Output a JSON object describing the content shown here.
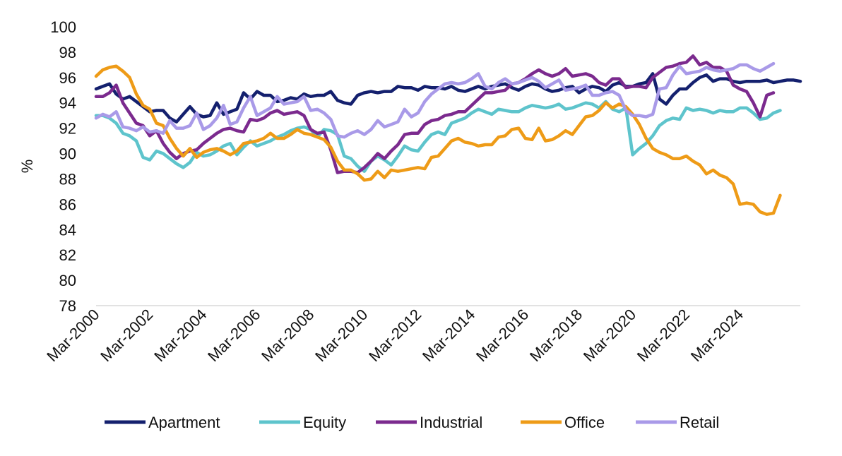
{
  "chart_data": {
    "type": "line",
    "title": "",
    "xlabel": "",
    "ylabel": "%",
    "ylim": [
      78,
      100
    ],
    "yticks": [
      78,
      80,
      82,
      84,
      86,
      88,
      90,
      92,
      94,
      96,
      98,
      100
    ],
    "x_start": "Mar-2000",
    "x_end": "Dec-2025",
    "x_interval": "quarterly",
    "xticks": [
      "Mar-2000",
      "Mar-2002",
      "Mar-2004",
      "Mar-2006",
      "Mar-2008",
      "Mar-2010",
      "Mar-2012",
      "Mar-2014",
      "Mar-2016",
      "Mar-2018",
      "Mar-2020",
      "Mar-2022",
      "Mar-2024"
    ],
    "grid": false,
    "legend": "bottom",
    "series": [
      {
        "name": "Apartment",
        "color": "#14206e",
        "values": [
          95.1,
          95.3,
          95.5,
          94.7,
          94.3,
          94.5,
          94.1,
          93.7,
          93.3,
          93.4,
          93.4,
          92.8,
          92.5,
          93.1,
          93.7,
          93.1,
          92.9,
          93.0,
          94.0,
          93.1,
          93.3,
          93.5,
          94.8,
          94.3,
          94.9,
          94.6,
          94.6,
          94.1,
          94.2,
          94.4,
          94.3,
          94.7,
          94.5,
          94.6,
          94.6,
          94.9,
          94.2,
          94.0,
          93.9,
          94.6,
          94.8,
          94.9,
          94.8,
          94.9,
          94.9,
          95.3,
          95.2,
          95.2,
          95.0,
          95.3,
          95.2,
          95.2,
          95.1,
          95.3,
          95.0,
          94.9,
          95.1,
          95.3,
          95.1,
          95.3,
          95.4,
          95.5,
          95.2,
          95.0,
          95.3,
          95.5,
          95.4,
          95.1,
          94.9,
          95.0,
          95.2,
          95.3,
          94.8,
          95.1,
          95.3,
          95.2,
          94.9,
          95.4,
          95.6,
          95.3,
          95.3,
          95.5,
          95.6,
          96.3,
          94.3,
          93.9,
          94.6,
          95.1,
          95.1,
          95.6,
          96.0,
          96.2,
          95.7,
          95.9,
          95.9,
          95.7,
          95.6,
          95.7,
          95.7,
          95.7,
          95.8,
          95.6,
          95.7,
          95.8,
          95.8,
          95.7
        ]
      },
      {
        "name": "Equity",
        "color": "#5ec4cc",
        "values": [
          93.0,
          93.0,
          92.8,
          92.4,
          91.6,
          91.4,
          91.0,
          89.7,
          89.5,
          90.2,
          90.0,
          89.6,
          89.2,
          88.9,
          89.3,
          90.1,
          89.8,
          89.9,
          90.2,
          90.6,
          90.8,
          89.9,
          90.5,
          91.0,
          90.6,
          90.8,
          91.0,
          91.3,
          91.5,
          91.8,
          92.0,
          92.1,
          91.9,
          91.3,
          91.9,
          91.8,
          91.5,
          89.8,
          89.6,
          89.0,
          88.6,
          89.4,
          89.8,
          89.5,
          89.1,
          89.8,
          90.6,
          90.3,
          90.2,
          90.9,
          91.5,
          91.7,
          91.5,
          92.4,
          92.6,
          92.8,
          93.2,
          93.5,
          93.3,
          93.1,
          93.5,
          93.4,
          93.3,
          93.3,
          93.6,
          93.8,
          93.7,
          93.6,
          93.7,
          93.9,
          93.5,
          93.6,
          93.8,
          94.0,
          93.9,
          93.6,
          94.1,
          93.5,
          93.3,
          93.6,
          89.9,
          90.4,
          90.8,
          91.4,
          92.2,
          92.6,
          92.8,
          92.7,
          93.6,
          93.4,
          93.5,
          93.4,
          93.2,
          93.4,
          93.3,
          93.3,
          93.6,
          93.6,
          93.2,
          92.7,
          92.8,
          93.2,
          93.4
        ]
      },
      {
        "name": "Industrial",
        "color": "#7b2a8e",
        "values": [
          94.5,
          94.5,
          94.8,
          95.4,
          94.0,
          93.2,
          92.4,
          92.2,
          91.4,
          91.8,
          90.8,
          90.1,
          89.6,
          90.0,
          90.2,
          90.3,
          90.8,
          91.2,
          91.6,
          91.9,
          92.0,
          91.8,
          91.7,
          92.7,
          92.6,
          92.8,
          93.2,
          93.4,
          93.1,
          93.2,
          93.3,
          93.0,
          91.9,
          91.6,
          91.7,
          90.3,
          88.5,
          88.6,
          88.6,
          88.5,
          88.9,
          89.4,
          90.0,
          89.6,
          90.2,
          90.7,
          91.5,
          91.6,
          91.6,
          92.3,
          92.6,
          92.7,
          93.0,
          93.1,
          93.3,
          93.3,
          93.8,
          94.3,
          94.8,
          94.8,
          94.9,
          95.0,
          95.5,
          95.6,
          95.9,
          96.3,
          96.6,
          96.3,
          96.1,
          96.3,
          96.7,
          96.1,
          96.2,
          96.3,
          96.1,
          95.6,
          95.4,
          95.9,
          95.9,
          95.2,
          95.3,
          95.3,
          95.2,
          96.0,
          96.4,
          96.8,
          96.9,
          97.1,
          97.2,
          97.7,
          97.0,
          97.2,
          96.8,
          96.8,
          96.5,
          95.4,
          95.1,
          94.9,
          94.0,
          92.9,
          94.6,
          94.8
        ]
      },
      {
        "name": "Office",
        "color": "#ee9b17",
        "values": [
          96.1,
          96.6,
          96.8,
          96.9,
          96.5,
          96.0,
          94.7,
          93.8,
          93.5,
          92.4,
          92.2,
          91.2,
          90.4,
          89.8,
          90.4,
          89.7,
          90.1,
          90.3,
          90.4,
          90.2,
          89.9,
          90.2,
          90.8,
          90.9,
          91.0,
          91.2,
          91.6,
          91.2,
          91.2,
          91.5,
          91.9,
          91.6,
          91.5,
          91.3,
          91.1,
          90.5,
          89.4,
          88.7,
          88.7,
          88.4,
          87.9,
          88.0,
          88.6,
          88.1,
          88.7,
          88.6,
          88.7,
          88.8,
          88.9,
          88.8,
          89.7,
          89.8,
          90.4,
          91.0,
          91.2,
          90.9,
          90.8,
          90.6,
          90.7,
          90.7,
          91.3,
          91.4,
          91.9,
          92.0,
          91.2,
          91.1,
          92.0,
          91.0,
          91.1,
          91.4,
          91.8,
          91.5,
          92.2,
          92.9,
          93.0,
          93.4,
          94.0,
          93.6,
          93.9,
          93.7,
          93.1,
          92.3,
          91.2,
          90.4,
          90.1,
          89.9,
          89.6,
          89.6,
          89.8,
          89.4,
          89.1,
          88.4,
          88.7,
          88.3,
          88.1,
          87.6,
          86.0,
          86.1,
          86.0,
          85.4,
          85.2,
          85.3,
          86.7
        ]
      },
      {
        "name": "Retail",
        "color": "#a99ae8",
        "values": [
          92.8,
          93.1,
          92.9,
          93.3,
          92.1,
          92.0,
          91.8,
          92.1,
          91.7,
          91.8,
          91.6,
          92.6,
          92.0,
          92.0,
          92.2,
          93.2,
          91.9,
          92.2,
          92.8,
          93.8,
          92.3,
          92.5,
          93.6,
          94.5,
          93.0,
          93.3,
          93.6,
          94.5,
          93.9,
          94.0,
          94.1,
          94.5,
          93.4,
          93.5,
          93.2,
          92.7,
          91.4,
          91.3,
          91.6,
          91.8,
          91.5,
          91.9,
          92.6,
          92.1,
          92.3,
          92.5,
          93.5,
          92.9,
          93.2,
          94.1,
          94.7,
          95.1,
          95.5,
          95.6,
          95.5,
          95.6,
          95.9,
          96.3,
          95.3,
          95.1,
          95.6,
          95.9,
          95.5,
          95.6,
          95.8,
          96.0,
          95.7,
          95.2,
          95.5,
          95.8,
          95.0,
          95.1,
          95.2,
          95.4,
          94.6,
          94.6,
          94.8,
          94.9,
          94.6,
          93.4,
          93.0,
          93.0,
          92.9,
          93.1,
          95.1,
          95.2,
          96.2,
          96.9,
          96.3,
          96.4,
          96.5,
          96.8,
          96.6,
          96.5,
          96.6,
          96.7,
          97.0,
          97.0,
          96.7,
          96.5,
          96.8,
          97.1
        ]
      }
    ]
  }
}
